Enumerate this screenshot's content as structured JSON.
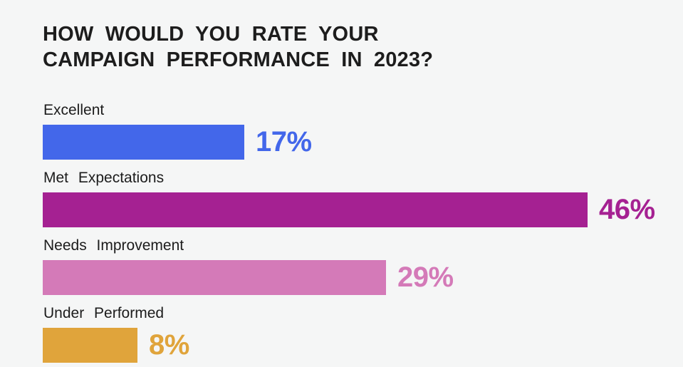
{
  "title": {
    "line1": "HOW WOULD YOU RATE YOUR",
    "line2": "CAMPAIGN PERFORMANCE IN 2023?"
  },
  "colors": {
    "background": "#f5f6f6",
    "title_text": "#1d1d1d",
    "label_text": "#1c1c1c"
  },
  "chart_data": {
    "type": "bar",
    "orientation": "horizontal",
    "title": "HOW WOULD YOU RATE YOUR CAMPAIGN PERFORMANCE IN 2023?",
    "categories": [
      "Excellent",
      "Met Expectations",
      "Needs Improvement",
      "Under Performed"
    ],
    "values": [
      17,
      46,
      29,
      8
    ],
    "xlim": [
      0,
      50
    ],
    "grid": false,
    "legend": "none",
    "value_label_position": "right-of-bar",
    "bars": [
      {
        "label": "Excellent",
        "value": 17,
        "display": "17%",
        "color": "#4367ea"
      },
      {
        "label": "Met Expectations",
        "value": 46,
        "display": "46%",
        "color": "#a52192"
      },
      {
        "label": "Needs Improvement",
        "value": 29,
        "display": "29%",
        "color": "#d47ab8"
      },
      {
        "label": "Under Performed",
        "value": 8,
        "display": "8%",
        "color": "#e0a43b"
      }
    ]
  }
}
